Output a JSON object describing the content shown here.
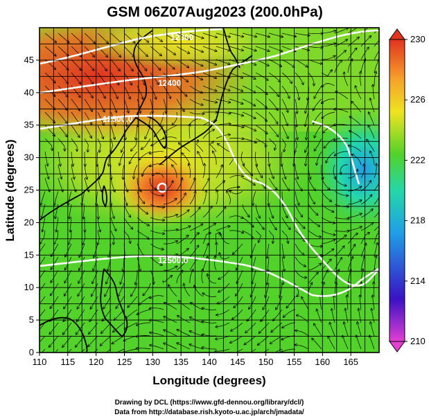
{
  "title": "GSM 06Z07Aug2023 (200.0hPa)",
  "map": {
    "lon_range": [
      110,
      170
    ],
    "lat_range": [
      0,
      50
    ],
    "xlabel": "Longitude (degrees)",
    "ylabel": "Latitude  (degrees)",
    "x_ticks": [
      "110",
      "115",
      "120",
      "125",
      "130",
      "135",
      "140",
      "145",
      "150",
      "155",
      "160",
      "165"
    ],
    "y_ticks": [
      "0",
      "5",
      "10",
      "15",
      "20",
      "25",
      "30",
      "35",
      "40",
      "45"
    ],
    "grid": true
  },
  "colorbar": {
    "range": [
      210,
      230
    ],
    "ticks": [
      "210",
      "214",
      "218",
      "222",
      "226",
      "230"
    ],
    "colors": [
      "#e23fd3",
      "#3a12c4",
      "#1f9fe6",
      "#24d8a7",
      "#52d22a",
      "#efe321",
      "#f6a02a",
      "#e0341f"
    ]
  },
  "contours": [
    {
      "label": "12500.0",
      "lon": 134,
      "lat": 13.5
    },
    {
      "label": "12500.0",
      "lon": 124.5,
      "lat": 36.0
    },
    {
      "label": "12400",
      "lon": 126,
      "lat": 41.0
    },
    {
      "label": "12300",
      "lon": 131.5,
      "lat": 48.0
    }
  ],
  "features": {
    "typhoon_center": {
      "lon": 131,
      "lat": 26.5
    },
    "cyclonic_vortex": {
      "lon": 164.5,
      "lat": 28
    }
  },
  "credits": [
    "Drawing by DCL (https://www.gfd-dennou.org/library/dcl/)",
    "Data from http://database.rish.kyoto-u.ac.jp/arch/jmadata/"
  ]
}
